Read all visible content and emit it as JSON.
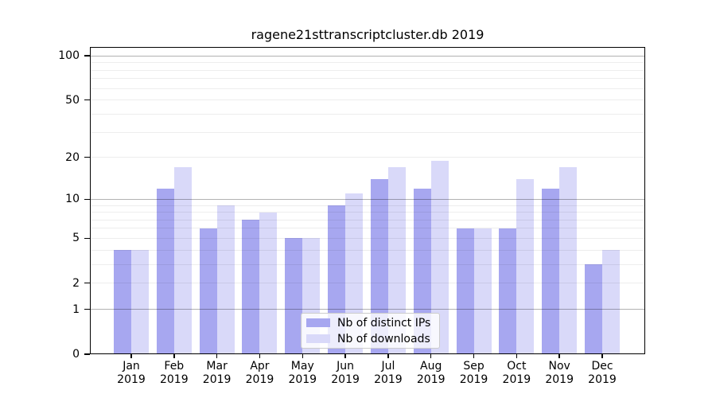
{
  "chart_data": {
    "type": "bar",
    "title": "ragene21sttranscriptcluster.db 2019",
    "year_label": "2019",
    "categories": [
      "Jan",
      "Feb",
      "Mar",
      "Apr",
      "May",
      "Jun",
      "Jul",
      "Aug",
      "Sep",
      "Oct",
      "Nov",
      "Dec"
    ],
    "series": [
      {
        "name": "Nb of distinct IPs",
        "color": "#a7a7f0",
        "values": [
          4,
          12,
          6,
          7,
          5,
          9,
          14,
          12,
          6,
          6,
          12,
          3
        ]
      },
      {
        "name": "Nb of downloads",
        "color": "#d9d9f9",
        "values": [
          4,
          17,
          9,
          8,
          5,
          11,
          17,
          19,
          6,
          14,
          17,
          4
        ]
      }
    ],
    "xlabel": "",
    "ylabel": "",
    "y_scale": "log10(1+x)",
    "ylim": [
      0,
      100
    ],
    "y_ticks": [
      0,
      1,
      2,
      5,
      10,
      20,
      50,
      100
    ],
    "grid_major_values": [
      1,
      10,
      100
    ],
    "grid_minor_values": [
      2,
      3,
      4,
      5,
      6,
      7,
      8,
      9,
      20,
      30,
      40,
      50,
      60,
      70,
      80,
      90
    ],
    "grid": "on",
    "legend_position": "lower-center",
    "colors": {
      "bar_distinct_ips": "#a7a7f0",
      "bar_downloads": "#d9d9f9",
      "grid_minor": "#ededed",
      "grid_major": "#b3b3b3",
      "axis": "#000000",
      "background": "#ffffff"
    }
  }
}
